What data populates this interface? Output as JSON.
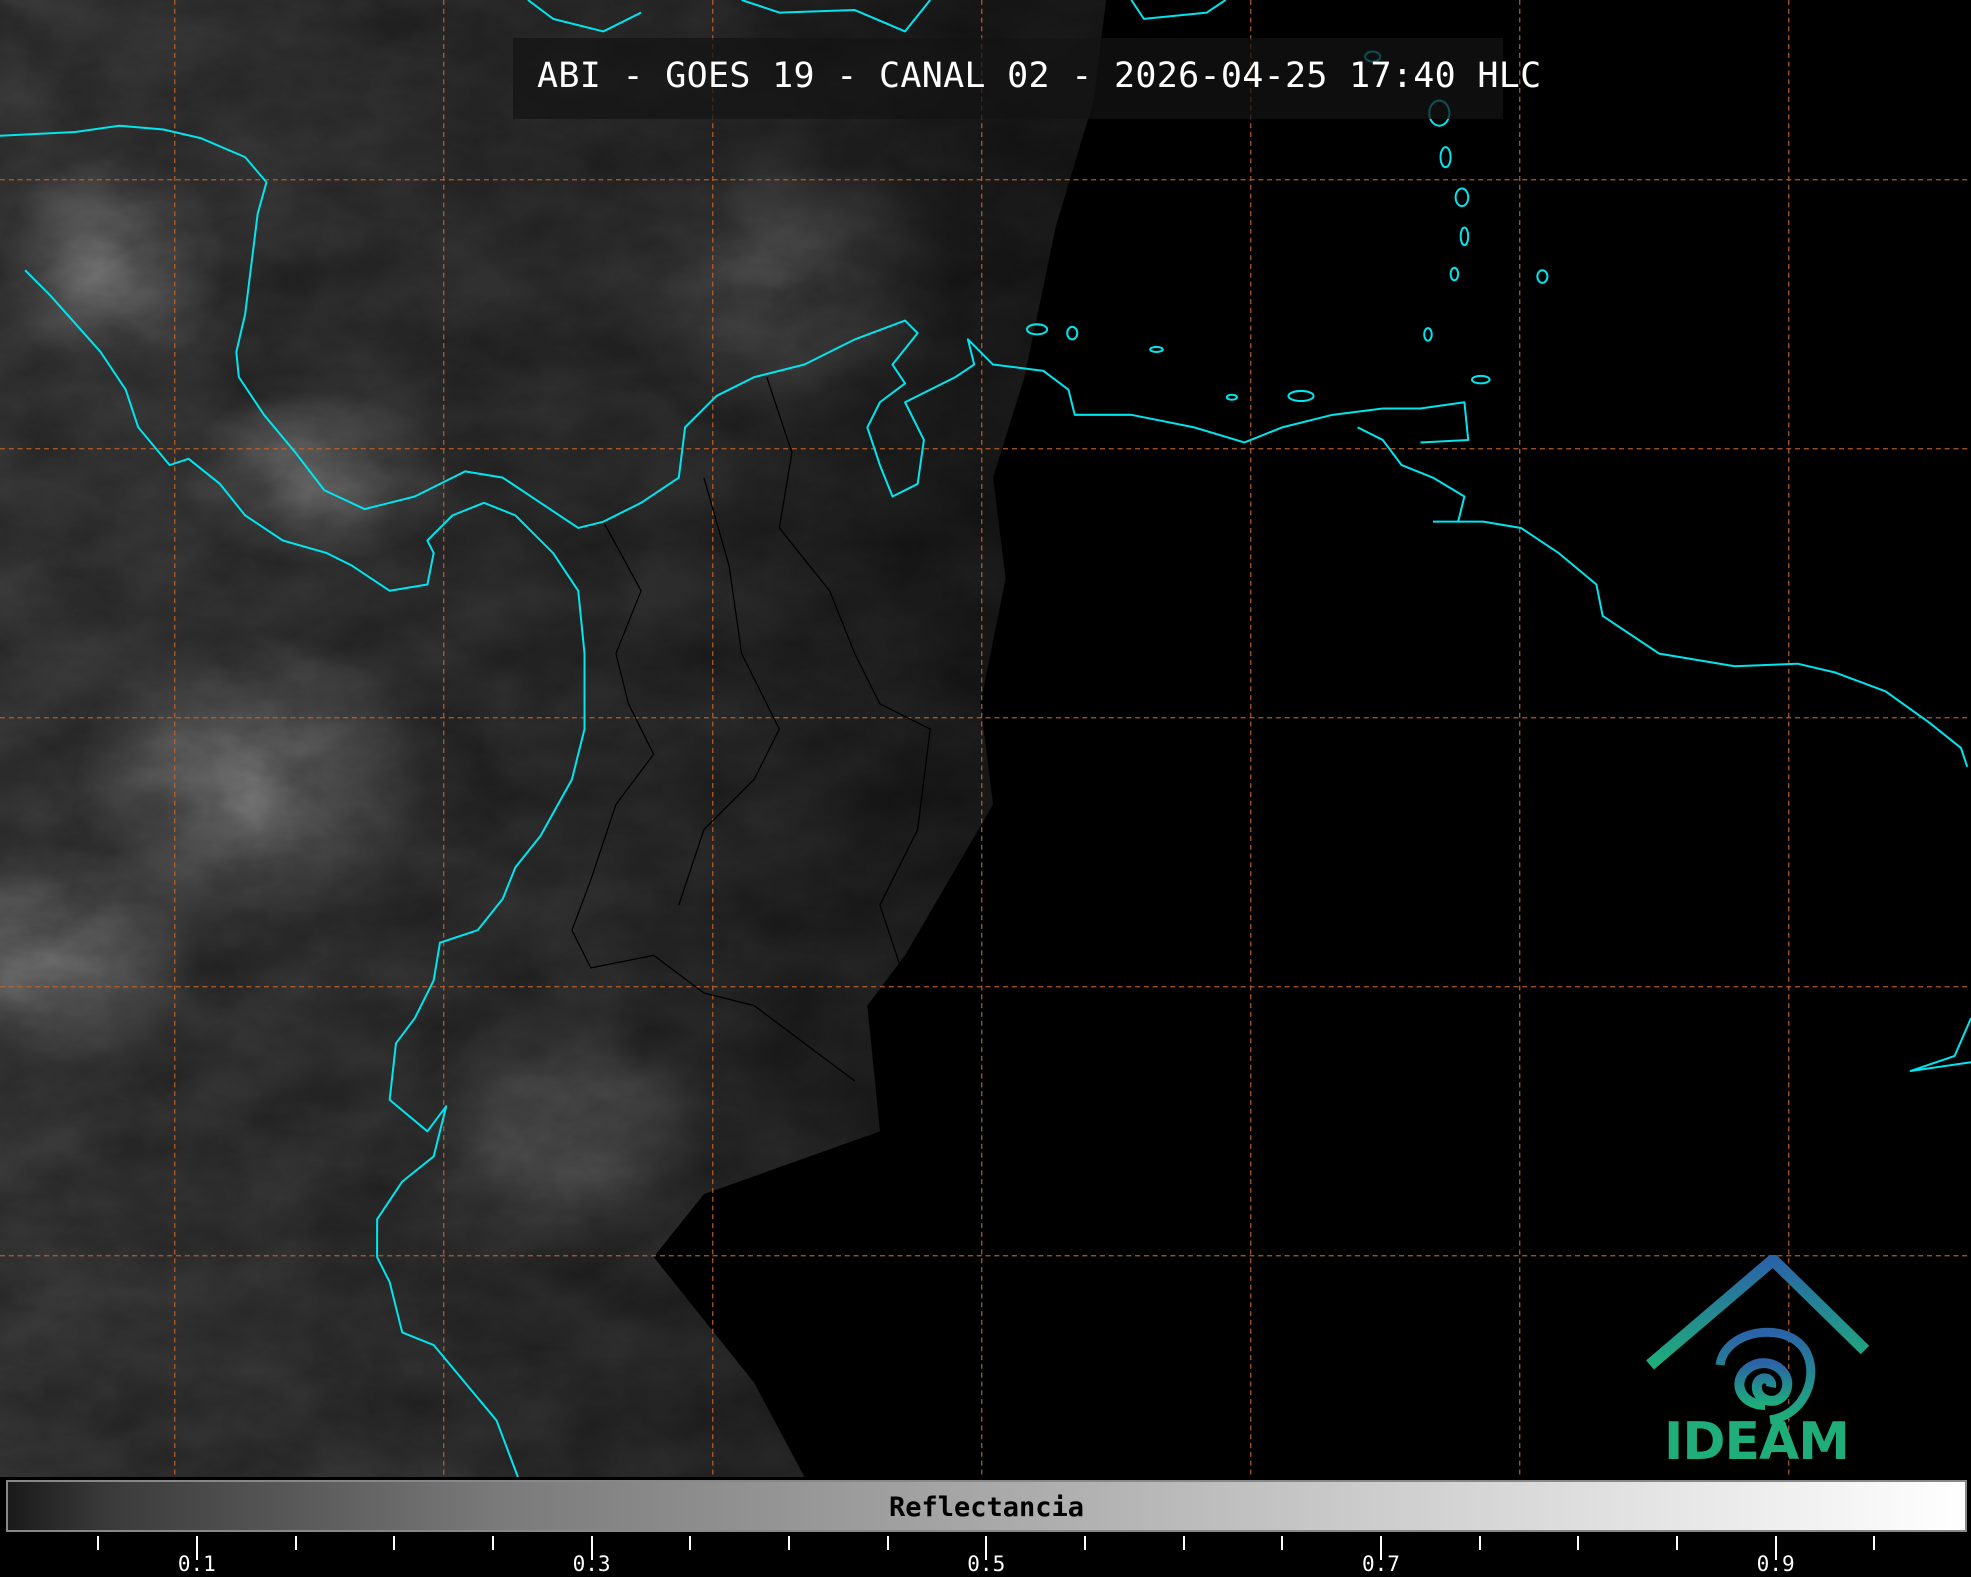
{
  "title": "ABI - GOES 19 - CANAL 02 - 2026-04-25 17:40 HLC",
  "colorbar": {
    "label": "Reflectancia",
    "range": [
      0,
      1
    ],
    "colormap": "grayscale",
    "major_ticks": [
      {
        "value": 0.1,
        "label": "0.1"
      },
      {
        "value": 0.3,
        "label": "0.3"
      },
      {
        "value": 0.5,
        "label": "0.5"
      },
      {
        "value": 0.7,
        "label": "0.7"
      },
      {
        "value": 0.9,
        "label": "0.9"
      }
    ],
    "minor_ticks": [
      0.05,
      0.15,
      0.2,
      0.25,
      0.35,
      0.4,
      0.45,
      0.55,
      0.6,
      0.65,
      0.75,
      0.8,
      0.85,
      0.95
    ]
  },
  "map": {
    "coastline_color": "#00e5ee",
    "grid_color": "#c0642a",
    "grid_style": "dashed",
    "borders_color": "#000000"
  },
  "logo": {
    "text": "IDEAM",
    "text_color": "#1fae7a"
  }
}
